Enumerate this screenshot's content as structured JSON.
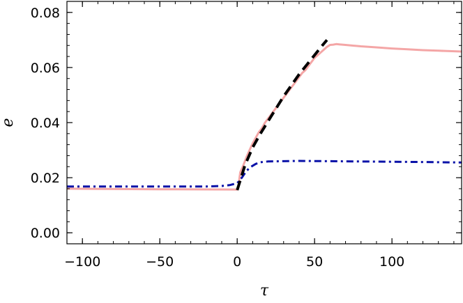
{
  "chart_data": {
    "type": "line",
    "title": "",
    "xlabel": "τ",
    "ylabel": "e",
    "xlim": [
      -110,
      145
    ],
    "ylim": [
      -0.004,
      0.084
    ],
    "xticks": [
      -100,
      -50,
      0,
      50,
      100
    ],
    "xtick_labels": [
      "−100",
      "−50",
      "0",
      "50",
      "100"
    ],
    "yticks": [
      0.0,
      0.02,
      0.04,
      0.06,
      0.08
    ],
    "ytick_labels": [
      "0.00",
      "0.02",
      "0.04",
      "0.06",
      "0.08"
    ],
    "grid": false,
    "legend": "none",
    "series": [
      {
        "style": "solid",
        "color": "#f4a6a6",
        "x": [
          -110,
          -50,
          0,
          0.5,
          2,
          4,
          6,
          8,
          10,
          12,
          14,
          16,
          18,
          20,
          22,
          24,
          26,
          28,
          30,
          32,
          34,
          36,
          38,
          40,
          42,
          44,
          46,
          48,
          50,
          52,
          54,
          56,
          58,
          60,
          62,
          64,
          66,
          68,
          70,
          80,
          90,
          100,
          110,
          120,
          130,
          145
        ],
        "y": [
          0.016,
          0.0158,
          0.0157,
          0.016,
          0.022,
          0.0245,
          0.0275,
          0.03,
          0.0325,
          0.0345,
          0.0365,
          0.038,
          0.04,
          0.0415,
          0.043,
          0.0445,
          0.046,
          0.0475,
          0.049,
          0.0505,
          0.052,
          0.0535,
          0.055,
          0.0565,
          0.058,
          0.059,
          0.0605,
          0.062,
          0.0635,
          0.0645,
          0.0655,
          0.0665,
          0.0675,
          0.0682,
          0.0683,
          0.0685,
          0.0684,
          0.0683,
          0.0682,
          0.0677,
          0.0673,
          0.0669,
          0.0666,
          0.0663,
          0.0661,
          0.0658
        ]
      },
      {
        "style": "dashdot",
        "color": "#0a12a8",
        "x": [
          -110,
          -50,
          -20,
          -10,
          -5,
          0,
          3,
          6,
          9,
          12,
          15,
          20,
          30,
          40,
          60,
          80,
          100,
          120,
          145
        ],
        "y": [
          0.0168,
          0.0168,
          0.0168,
          0.017,
          0.0173,
          0.018,
          0.02,
          0.0225,
          0.024,
          0.025,
          0.0256,
          0.0259,
          0.026,
          0.0261,
          0.026,
          0.0259,
          0.0258,
          0.0257,
          0.0255
        ]
      },
      {
        "style": "dashed",
        "color": "#000000",
        "x": [
          0,
          5,
          10,
          15,
          20,
          25,
          30,
          35,
          40,
          45,
          50,
          55,
          58
        ],
        "y": [
          0.0155,
          0.0245,
          0.031,
          0.036,
          0.0405,
          0.045,
          0.0495,
          0.0535,
          0.0575,
          0.061,
          0.0645,
          0.068,
          0.07
        ]
      }
    ]
  }
}
